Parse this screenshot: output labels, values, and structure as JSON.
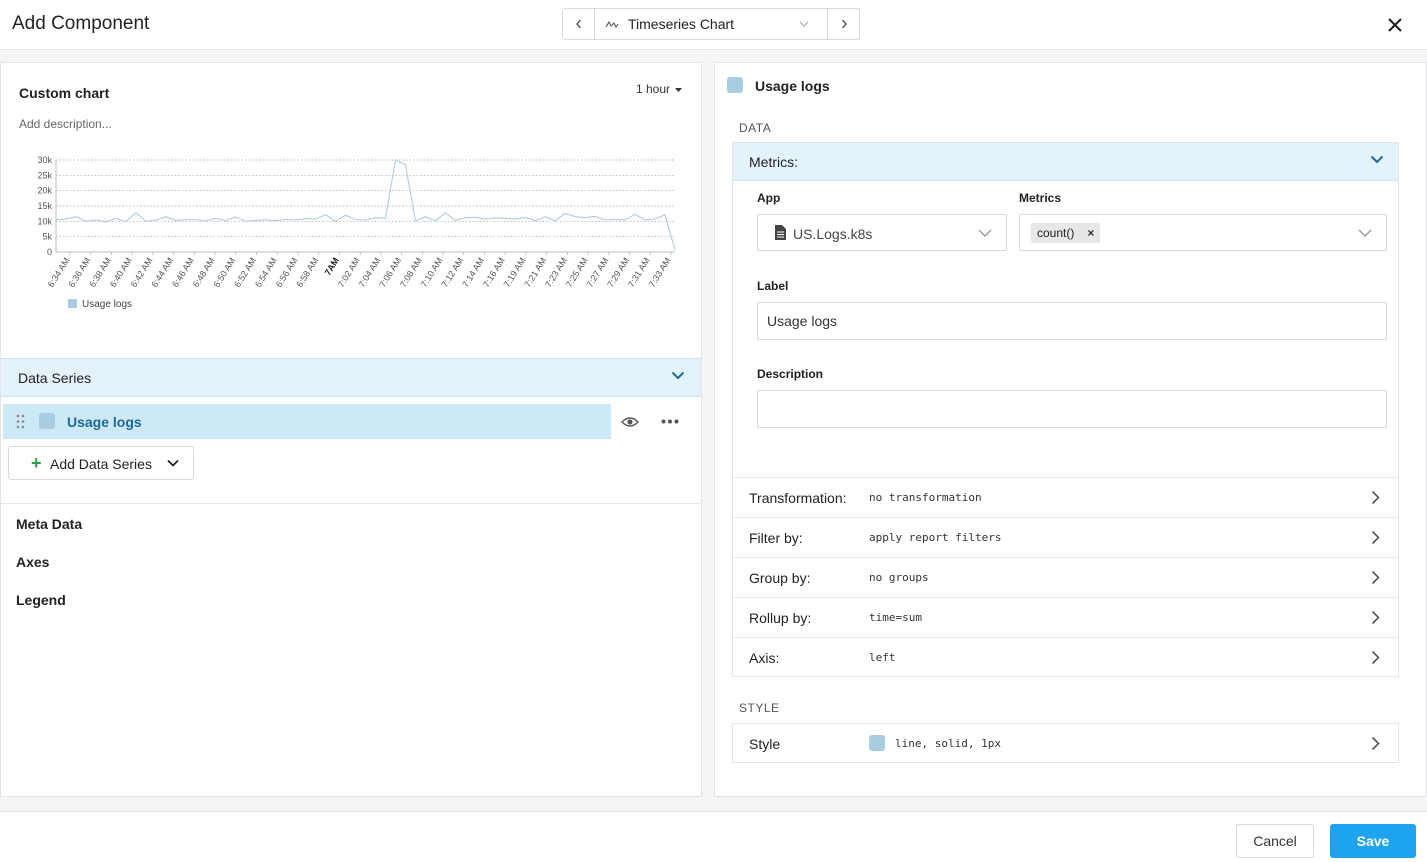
{
  "header": {
    "title": "Add Component",
    "chart_type": "Timeseries Chart"
  },
  "preview": {
    "title": "Custom chart",
    "range": "1 hour",
    "description_placeholder": "Add description..."
  },
  "chart_data": {
    "type": "line",
    "ylim": [
      0,
      30000
    ],
    "y_ticks": [
      "0",
      "5k",
      "10k",
      "15k",
      "20k",
      "25k",
      "30k"
    ],
    "x_ticks": [
      "6:34 AM",
      "6:36 AM",
      "6:38 AM",
      "6:40 AM",
      "6:42 AM",
      "6:44 AM",
      "6:46 AM",
      "6:48 AM",
      "6:50 AM",
      "6:52 AM",
      "6:54 AM",
      "6:56 AM",
      "6:58 AM",
      "7AM",
      "7:02 AM",
      "7:04 AM",
      "7:06 AM",
      "7:08 AM",
      "7:10 AM",
      "7:12 AM",
      "7:14 AM",
      "7:16 AM",
      "7:19 AM",
      "7:21 AM",
      "7:23 AM",
      "7:25 AM",
      "7:27 AM",
      "7:29 AM",
      "7:31 AM",
      "7:33 AM"
    ],
    "grid": true,
    "legend": "bottom-left",
    "color": "#a9cde0",
    "series": [
      {
        "name": "Usage logs",
        "values": [
          10500,
          10800,
          11500,
          10000,
          10400,
          9800,
          11000,
          9900,
          12800,
          10000,
          10400,
          11500,
          10300,
          10500,
          10600,
          10100,
          11000,
          10200,
          11400,
          10000,
          10300,
          10500,
          10200,
          10600,
          10400,
          10900,
          10700,
          12200,
          10000,
          12000,
          10600,
          10400,
          11200,
          11000,
          30000,
          28500,
          10200,
          11500,
          10200,
          12800,
          10300,
          11200,
          11300,
          10700,
          11200,
          11000,
          10800,
          11300,
          10200,
          11500,
          10100,
          12600,
          11500,
          11200,
          11600,
          10500,
          10600,
          10400,
          12300,
          10400,
          10800,
          12100,
          700
        ]
      }
    ]
  },
  "data_series": {
    "header": "Data Series",
    "items": [
      {
        "label": "Usage logs"
      }
    ],
    "add_label": "Add Data Series"
  },
  "sections": [
    "Meta Data",
    "Axes",
    "Legend"
  ],
  "series_config": {
    "title": "Usage logs",
    "data_label": "DATA",
    "metrics_header": "Metrics:",
    "app_label": "App",
    "app_value": "US.Logs.k8s",
    "metrics_label": "Metrics",
    "metric_chip": "count()",
    "label_label": "Label",
    "label_value": "Usage logs",
    "description_label": "Description",
    "description_value": "",
    "options": [
      {
        "key": "Transformation:",
        "value": "no transformation"
      },
      {
        "key": "Filter by:",
        "value": "apply report filters"
      },
      {
        "key": "Group by:",
        "value": "no groups"
      },
      {
        "key": "Rollup by:",
        "value": "time=sum"
      },
      {
        "key": "Axis:",
        "value": "left"
      }
    ],
    "style_label": "STYLE",
    "style_key": "Style",
    "style_value": "line, solid, 1px"
  },
  "footer": {
    "cancel": "Cancel",
    "save": "Save"
  },
  "colors": {
    "accent": "#1ea3ee",
    "series": "#a9cde0",
    "header_bg": "#e3f2fb",
    "selected_row": "#cde8f7"
  }
}
